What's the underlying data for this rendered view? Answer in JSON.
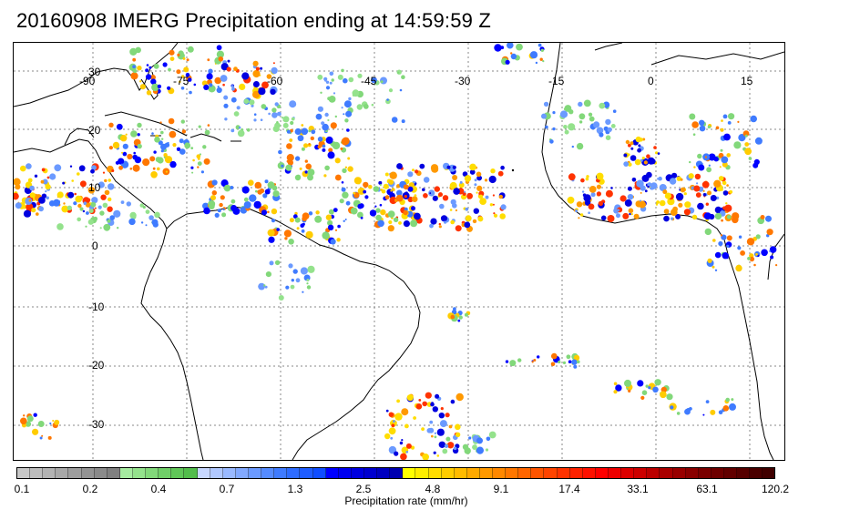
{
  "title": "20160908 IMERG Precipitation ending at 14:59:59 Z",
  "map": {
    "lon_labels": [
      "-90",
      "-75",
      "-60",
      "-45",
      "-30",
      "-15",
      "0",
      "15"
    ],
    "lat_labels": [
      "30",
      "20",
      "10",
      "0",
      "-10",
      "-20",
      "-30"
    ],
    "grid": true,
    "region": "Tropical Atlantic, Americas and Africa"
  },
  "colorbar": {
    "label": "Precipitation rate (mm/hr)",
    "tick_labels": [
      "0.1",
      "0.2",
      "0.4",
      "0.7",
      "1.3",
      "2.5",
      "4.8",
      "9.1",
      "17.4",
      "33.1",
      "63.1",
      "120.2"
    ],
    "colors": [
      "#c8c8c8",
      "#bdbdbd",
      "#b3b3b3",
      "#a8a8a8",
      "#9e9e9e",
      "#949494",
      "#8a8a8a",
      "#808080",
      "#a6eba0",
      "#94e28c",
      "#82d87a",
      "#70cf68",
      "#60c658",
      "#52bd4b",
      "#c7d7ff",
      "#b0c8ff",
      "#99b9ff",
      "#82a9ff",
      "#6b9aff",
      "#558bff",
      "#3f7bff",
      "#2e6cff",
      "#1e5cff",
      "#0f4dff",
      "#0000ff",
      "#0000f0",
      "#0000e0",
      "#0000d0",
      "#0000c0",
      "#0000b0",
      "#ffff00",
      "#ffee00",
      "#ffdd00",
      "#ffcc00",
      "#ffbb00",
      "#ffaa00",
      "#ff9900",
      "#ff8800",
      "#ff7700",
      "#ff6600",
      "#ff5500",
      "#ff4400",
      "#ff3300",
      "#ff2200",
      "#ff1100",
      "#ff0000",
      "#ee0000",
      "#dd0000",
      "#cc0000",
      "#bb0000",
      "#aa0000",
      "#990000",
      "#8a0000",
      "#7a0000",
      "#6e0000",
      "#620000",
      "#560000",
      "#4a0000",
      "#400000"
    ]
  }
}
